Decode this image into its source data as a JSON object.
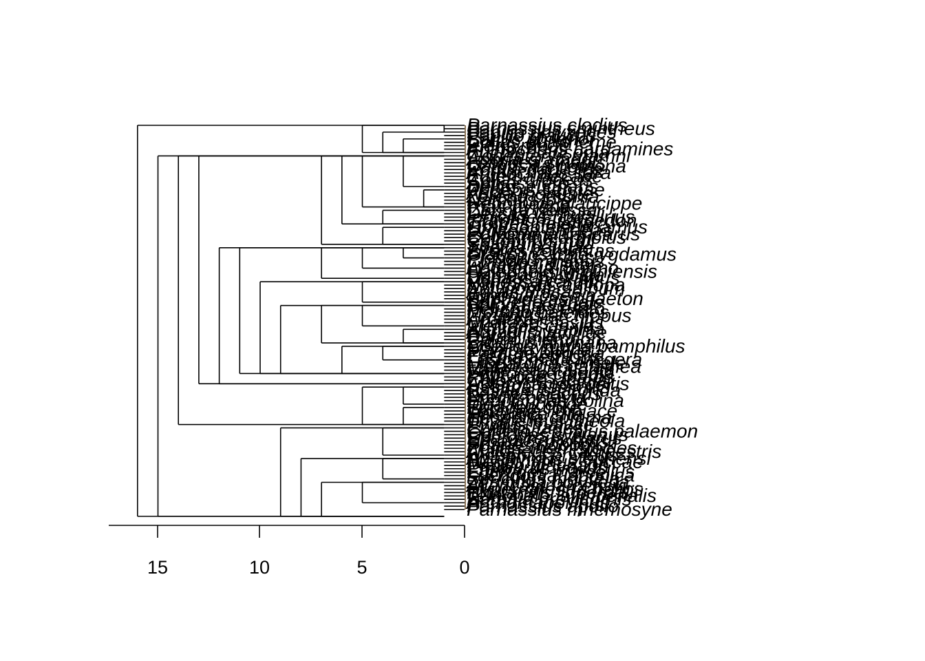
{
  "tree": {
    "tip_labels": [
      "Parnassius clodius",
      "Parnassius smintheus",
      "Papilio polyxenes",
      "Papilio glaucus",
      "Battus philenor",
      "Colias eurytheme",
      "Pieris rapae",
      "Anthocharis cardamines",
      "Euchloe ausonia",
      "Gonepteryx rhamni",
      "Aporia crataegi",
      "Leptidea sinapis",
      "Catopsilia pomona",
      "Pontia daplidice",
      "Anthocharis sara",
      "Eurema hecabe",
      "Colias croceus",
      "Appias nero",
      "Delias eucharis",
      "Phoebis sennae",
      "Ascia monuste",
      "Zerene cesonia",
      "Nathalis iole",
      "Hebomoia glaucippe",
      "Ixias pyrene",
      "Cepora nerissa",
      "Dercas verhuelli",
      "Iphiclides podalirius",
      "Graphium sarpedon",
      "Troides helena",
      "Ornithoptera priamus",
      "Lycaena phlaeas",
      "Polyommatus icarus",
      "Celastrina argiolus",
      "Callophrys rubi",
      "Satyrium titus",
      "Thecla betulae",
      "Everes comyntas",
      "Glaucopsyche lygdamus",
      "Plebejus argus",
      "Cupido minimus",
      "Lycaena dispar",
      "Apodemia mormo",
      "Calephelis virginiensis",
      "Hamearis lucina",
      "Danaus plexippus",
      "Vanessa cardui",
      "Nymphalis antiopa",
      "Polygonia c-album",
      "Aglais urticae",
      "Junonia coenia",
      "Euphydryas phaeton",
      "Speyeria cybele",
      "Boloria selene",
      "Heliconius erato",
      "Morpho peleides",
      "Limenitis archippus",
      "Apatura iris",
      "Charaxes jasius",
      "Melitaea cinxia",
      "Argynnis paphia",
      "Agraulis vanillae",
      "Dryas iulia",
      "Caligo memnon",
      "Bicyclus anynana",
      "Coenonympha pamphilus",
      "Maniola jurtina",
      "Pararge aegeria",
      "Erebia aethiops",
      "Lasiommata megera",
      "Hipparchia semele",
      "Melanargia galathea",
      "Vanessa atalanta",
      "Euptoieta claudia",
      "Phyciodes tharos",
      "Chlosyne lacinia",
      "Asterocampa celtis",
      "Hestina assimilis",
      "Sasakia charonda",
      "Kallima inachus",
      "Precis octavia",
      "Hypolimnas bolina",
      "Idea leuconoe",
      "Euploea core",
      "Tirumala limniace",
      "Parantica sita",
      "Hesperia comma",
      "Thymelicus lineola",
      "Pyrgus malvae",
      "Erynnis tages",
      "Carterocephalus palaemon",
      "Ochlodes sylvanus",
      "Epargyreus clarus",
      "Urbanus proteus",
      "Poanes hobomok",
      "Polites themistocles",
      "Atalopedes campestris",
      "Hylephila phyleus",
      "Agathymus stephensi",
      "Megathymus yuccae",
      "Papilio machaon",
      "Pterourus troilus",
      "Eurytides marcellus",
      "Luehdorfia japonica",
      "Sericinus montela",
      "Zerynthia polyxena",
      "Allancastria cerisyi",
      "Hypermnestra helios",
      "Bhutanitis lidderdalii",
      "Teinopalpus imperialis",
      "Baronia brevicornis",
      "Archon apollinus",
      "Parnassius apollo",
      "Parnassius mnemosyne"
    ]
  },
  "axis": {
    "ticks": [
      "15",
      "10",
      "5",
      "0"
    ]
  },
  "colors": {
    "ink": "#000000",
    "background": "#ffffff",
    "tip_smudge": "#8b7355"
  }
}
